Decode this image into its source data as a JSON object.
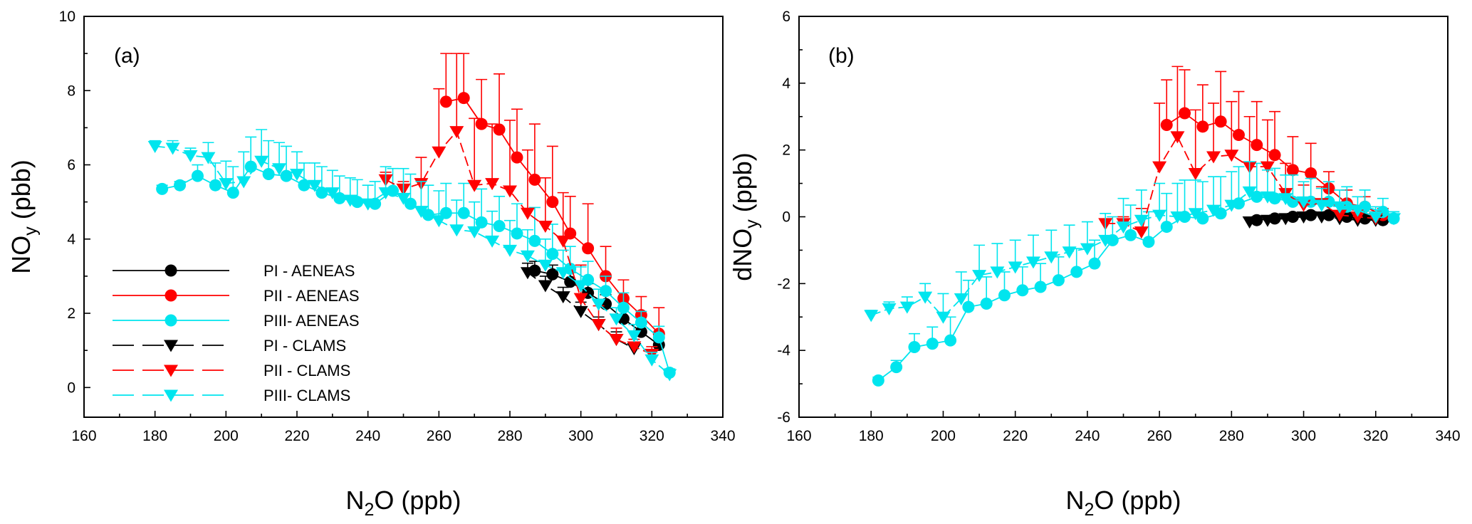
{
  "chart_data": [
    {
      "type": "scatter",
      "panel_label": "(a)",
      "xlabel_main": "N",
      "xlabel_sub": "2",
      "xlabel_tail": "O (ppb)",
      "ylabel_main": "NO",
      "ylabel_sub": "y",
      "ylabel_tail": " (pbb)",
      "xlim": [
        160,
        340
      ],
      "ylim": [
        -0.8,
        10
      ],
      "xticks": [
        160,
        180,
        200,
        220,
        240,
        260,
        280,
        300,
        320,
        340
      ],
      "yticks": [
        0,
        2,
        4,
        6,
        8,
        10
      ],
      "grid": false,
      "legend_position": "bottom-left",
      "series": [
        {
          "name": "PI  - AENEAS",
          "color": "#000000",
          "marker": "circle",
          "dash": false,
          "x": [
            287,
            292,
            297,
            302,
            307,
            312,
            317,
            322
          ],
          "y": [
            3.15,
            3.05,
            2.85,
            2.55,
            2.25,
            1.85,
            1.5,
            1.15
          ],
          "err": [
            0.25,
            0.25,
            0.25,
            0.25,
            0.25,
            0.25,
            0.2,
            0.2
          ]
        },
        {
          "name": "PII - AENEAS",
          "color": "#ff0000",
          "marker": "circle",
          "dash": false,
          "x": [
            262,
            267,
            272,
            277,
            282,
            287,
            292,
            297,
            302,
            307,
            312,
            317,
            322
          ],
          "y": [
            7.7,
            7.8,
            7.1,
            6.95,
            6.2,
            5.6,
            5.0,
            4.15,
            3.75,
            3.0,
            2.4,
            1.95,
            1.45
          ],
          "err": [
            1.3,
            1.2,
            1.2,
            1.5,
            1.3,
            1.5,
            1.5,
            1.0,
            1.2,
            0.8,
            0.5,
            0.5,
            0.7
          ]
        },
        {
          "name": "PIII- AENEAS",
          "color": "#00e5ee",
          "marker": "circle",
          "dash": false,
          "x": [
            182,
            187,
            192,
            197,
            202,
            207,
            212,
            217,
            222,
            227,
            232,
            237,
            242,
            247,
            252,
            257,
            262,
            267,
            272,
            277,
            282,
            287,
            292,
            297,
            302,
            307,
            312,
            317,
            322,
            325
          ],
          "y": [
            5.35,
            5.45,
            5.7,
            5.45,
            5.25,
            5.95,
            5.75,
            5.7,
            5.45,
            5.25,
            5.1,
            5.0,
            4.95,
            5.3,
            4.95,
            4.65,
            4.7,
            4.7,
            4.45,
            4.35,
            4.15,
            3.95,
            3.6,
            3.2,
            2.9,
            2.6,
            2.15,
            1.75,
            1.35,
            0.4
          ],
          "err": [
            0.1,
            0.1,
            0.3,
            0.6,
            0.7,
            0.8,
            0.9,
            0.8,
            0.6,
            0.7,
            0.6,
            0.6,
            0.6,
            0.6,
            0.8,
            0.8,
            0.8,
            0.8,
            0.9,
            0.8,
            0.8,
            0.9,
            0.8,
            0.6,
            0.5,
            0.4,
            0.4,
            0.3,
            0.3,
            0.1
          ]
        },
        {
          "name": "PI  - CLAMS",
          "color": "#000000",
          "marker": "triangle-down",
          "dash": true,
          "x": [
            285,
            290,
            295,
            300,
            305,
            310,
            315
          ],
          "y": [
            3.1,
            2.75,
            2.45,
            2.05,
            1.7,
            1.3,
            1.05
          ],
          "err": [
            0.25,
            0.25,
            0.25,
            0.25,
            0.2,
            0.2,
            0.15
          ]
        },
        {
          "name": "PII - CLAMS",
          "color": "#ff0000",
          "marker": "triangle-down",
          "dash": true,
          "x": [
            245,
            250,
            255,
            260,
            265,
            270,
            275,
            280,
            285,
            290,
            295,
            300,
            305,
            310,
            315,
            320
          ],
          "y": [
            5.6,
            5.35,
            5.5,
            6.35,
            6.9,
            5.45,
            5.5,
            5.3,
            4.7,
            4.35,
            3.95,
            2.4,
            1.7,
            1.3,
            1.1,
            0.9
          ],
          "err": [
            0.2,
            0.2,
            0.7,
            1.7,
            2.1,
            1.8,
            1.6,
            1.9,
            1.7,
            1.3,
            1.3,
            0.9,
            0.5,
            0.3,
            0.2,
            0.2
          ]
        },
        {
          "name": "PIII- CLAMS",
          "color": "#00e5ee",
          "marker": "triangle-down",
          "dash": true,
          "x": [
            180,
            185,
            190,
            195,
            200,
            205,
            210,
            215,
            220,
            225,
            230,
            235,
            240,
            245,
            250,
            255,
            260,
            265,
            270,
            275,
            280,
            285,
            290,
            295,
            300,
            305,
            310,
            315,
            320,
            325
          ],
          "y": [
            6.5,
            6.45,
            6.25,
            6.2,
            5.5,
            5.55,
            6.1,
            5.9,
            5.75,
            5.45,
            5.25,
            5.05,
            4.95,
            5.25,
            5.1,
            4.75,
            4.5,
            4.25,
            4.2,
            3.95,
            3.7,
            3.55,
            3.3,
            3.1,
            2.75,
            2.25,
            1.85,
            1.4,
            0.75,
            0.35
          ],
          "err": [
            0.15,
            0.2,
            0.2,
            0.4,
            0.6,
            0.8,
            0.85,
            0.7,
            0.6,
            0.6,
            0.6,
            0.6,
            0.5,
            0.7,
            0.8,
            0.8,
            0.8,
            0.8,
            0.8,
            0.8,
            0.8,
            0.7,
            0.7,
            0.6,
            0.5,
            0.4,
            0.3,
            0.3,
            0.2,
            0.1
          ]
        }
      ]
    },
    {
      "type": "scatter",
      "panel_label": "(b)",
      "xlabel_main": "N",
      "xlabel_sub": "2",
      "xlabel_tail": "O (ppb)",
      "ylabel_main": "dNO",
      "ylabel_sub": "y",
      "ylabel_tail": " (ppb)",
      "xlim": [
        160,
        340
      ],
      "ylim": [
        -6,
        6
      ],
      "xticks": [
        160,
        180,
        200,
        220,
        240,
        260,
        280,
        300,
        320,
        340
      ],
      "yticks": [
        -6,
        -4,
        -2,
        0,
        2,
        4,
        6
      ],
      "grid": false,
      "series": [
        {
          "name": "PI  - AENEAS",
          "color": "#000000",
          "marker": "circle",
          "dash": false,
          "x": [
            287,
            292,
            297,
            302,
            307,
            312,
            317,
            322
          ],
          "y": [
            -0.1,
            -0.05,
            0.0,
            0.05,
            0.05,
            0.0,
            -0.05,
            -0.1
          ],
          "err": [
            0.1,
            0.1,
            0.1,
            0.1,
            0.1,
            0.1,
            0.1,
            0.1
          ]
        },
        {
          "name": "PII - AENEAS",
          "color": "#ff0000",
          "marker": "circle",
          "dash": false,
          "x": [
            262,
            267,
            272,
            277,
            282,
            287,
            292,
            297,
            302,
            307,
            312,
            317,
            322
          ],
          "y": [
            2.75,
            3.1,
            2.7,
            2.85,
            2.45,
            2.15,
            1.85,
            1.4,
            1.3,
            0.85,
            0.4,
            0.3,
            0.05
          ],
          "err": [
            1.35,
            1.3,
            1.25,
            1.5,
            1.3,
            1.3,
            1.3,
            1.0,
            0.9,
            0.5,
            0.4,
            0.3,
            0.2
          ]
        },
        {
          "name": "PIII- AENEAS",
          "color": "#00e5ee",
          "marker": "circle",
          "dash": false,
          "x": [
            182,
            187,
            192,
            197,
            202,
            207,
            212,
            217,
            222,
            227,
            232,
            237,
            242,
            247,
            252,
            257,
            262,
            267,
            272,
            277,
            282,
            287,
            292,
            297,
            302,
            307,
            312,
            317,
            322,
            325
          ],
          "y": [
            -4.9,
            -4.5,
            -3.9,
            -3.8,
            -3.7,
            -2.7,
            -2.6,
            -2.35,
            -2.2,
            -2.1,
            -1.9,
            -1.65,
            -1.4,
            -0.7,
            -0.55,
            -0.75,
            -0.3,
            0.0,
            -0.05,
            0.1,
            0.4,
            0.6,
            0.55,
            0.45,
            0.45,
            0.45,
            0.3,
            0.3,
            0.15,
            -0.05
          ],
          "err": [
            0.1,
            0.2,
            0.4,
            0.5,
            0.7,
            0.8,
            0.8,
            0.7,
            0.7,
            0.7,
            0.7,
            0.7,
            0.7,
            0.7,
            0.9,
            0.9,
            1.0,
            1.1,
            1.1,
            1.1,
            1.1,
            1.0,
            0.9,
            0.8,
            0.7,
            0.6,
            0.6,
            0.5,
            0.4,
            0.2
          ]
        },
        {
          "name": "PI  - CLAMS",
          "color": "#000000",
          "marker": "triangle-down",
          "dash": true,
          "x": [
            285,
            290,
            295,
            300,
            305,
            310,
            315,
            320
          ],
          "y": [
            -0.15,
            -0.1,
            -0.05,
            0.0,
            0.0,
            -0.05,
            -0.1,
            -0.1
          ],
          "err": [
            0.1,
            0.1,
            0.1,
            0.1,
            0.1,
            0.1,
            0.1,
            0.1
          ]
        },
        {
          "name": "PII - CLAMS",
          "color": "#ff0000",
          "marker": "triangle-down",
          "dash": true,
          "x": [
            245,
            250,
            255,
            260,
            265,
            270,
            275,
            280,
            285,
            290,
            295,
            300,
            305,
            310,
            315,
            320
          ],
          "y": [
            -0.2,
            -0.2,
            -0.45,
            1.5,
            2.4,
            1.3,
            1.8,
            1.85,
            1.5,
            1.5,
            0.7,
            0.35,
            0.4,
            0.05,
            0.0,
            -0.05
          ],
          "err": [
            0.1,
            0.2,
            0.7,
            1.9,
            2.1,
            1.9,
            1.6,
            1.6,
            1.5,
            1.4,
            0.9,
            0.6,
            0.5,
            0.3,
            0.2,
            0.2
          ]
        },
        {
          "name": "PIII- CLAMS",
          "color": "#00e5ee",
          "marker": "triangle-down",
          "dash": true,
          "x": [
            180,
            185,
            190,
            195,
            200,
            205,
            210,
            215,
            220,
            225,
            230,
            235,
            240,
            245,
            250,
            255,
            260,
            265,
            270,
            275,
            280,
            285,
            290,
            295,
            300,
            305,
            310,
            315,
            320,
            325
          ],
          "y": [
            -2.95,
            -2.75,
            -2.7,
            -2.4,
            -3.0,
            -2.45,
            -1.75,
            -1.65,
            -1.5,
            -1.35,
            -1.2,
            -1.05,
            -0.95,
            -0.7,
            -0.3,
            -0.1,
            0.05,
            0.0,
            0.1,
            0.2,
            0.35,
            0.75,
            0.6,
            0.55,
            0.45,
            0.35,
            0.3,
            0.2,
            0.0,
            -0.05
          ],
          "err": [
            0.15,
            0.2,
            0.3,
            0.4,
            0.7,
            0.8,
            0.9,
            0.85,
            0.8,
            0.8,
            0.8,
            0.8,
            0.8,
            0.8,
            0.85,
            0.9,
            0.95,
            1.0,
            1.0,
            1.0,
            1.0,
            0.9,
            0.8,
            0.7,
            0.6,
            0.5,
            0.5,
            0.4,
            0.3,
            0.2
          ]
        }
      ]
    }
  ]
}
